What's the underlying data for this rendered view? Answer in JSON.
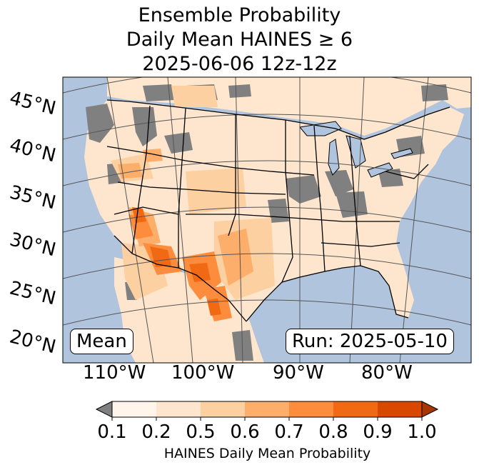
{
  "title": {
    "line1": "Ensemble Probability",
    "line2": "Daily Mean HAINES ≥ 6",
    "line3": "2025-06-06 12z-12z"
  },
  "map": {
    "lat_labels": [
      "45°N",
      "40°N",
      "35°N",
      "30°N",
      "25°N",
      "20°N"
    ],
    "lon_labels": [
      "110°W",
      "100°W",
      "90°W",
      "80°W"
    ],
    "stat_label": "Mean",
    "run_label": "Run: 2025-05-10",
    "colors": {
      "ocean": "#b0c4de",
      "missing": "#808080",
      "outside": "#ffe7cf"
    }
  },
  "colorbar": {
    "ticks": [
      "0.1",
      "0.2",
      "0.5",
      "0.6",
      "0.7",
      "0.8",
      "0.9",
      "1.0"
    ],
    "label": "HAINES Daily Mean Probability",
    "under_color": "#808080",
    "colors": [
      "#fff5eb",
      "#fee6ce",
      "#fdd0a2",
      "#fdae6b",
      "#fd8d3c",
      "#f16913",
      "#d94801"
    ],
    "over_color": "#a63603"
  }
}
